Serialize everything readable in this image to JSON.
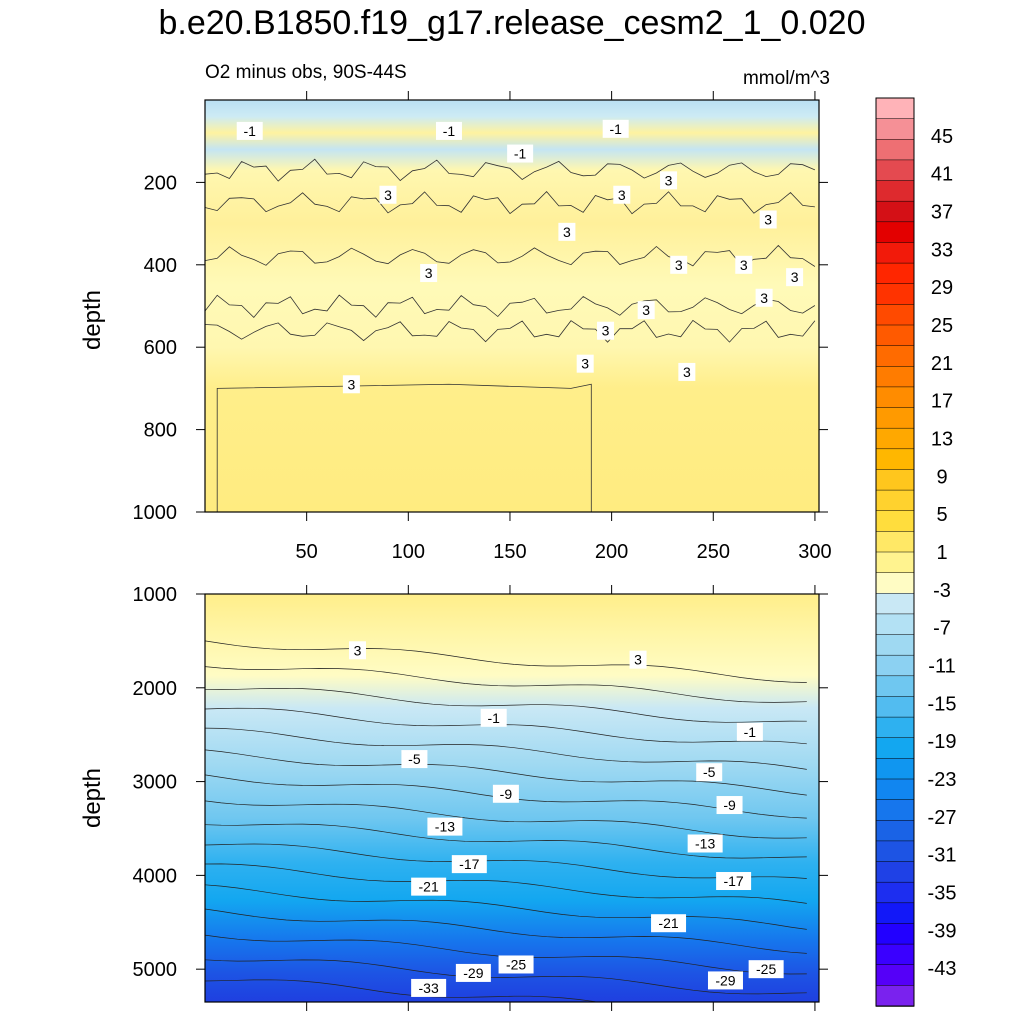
{
  "title": "b.e20.B1850.f19_g17.release_cesm2_1_0.020",
  "subtitle_left": "O2 minus obs, 90S-44S",
  "subtitle_right": "mmol/m^3",
  "chart_data": [
    {
      "type": "heatmap",
      "panel": "upper",
      "xlabel": "",
      "ylabel": "depth",
      "xlim": [
        0,
        302
      ],
      "ylim": [
        1000,
        0
      ],
      "xticks": [
        50,
        100,
        150,
        200,
        250,
        300
      ],
      "yticks": [
        200,
        400,
        600,
        800,
        1000
      ],
      "contour_labels": [
        {
          "value": "-1",
          "x": 22,
          "y": 75
        },
        {
          "value": "-1",
          "x": 120,
          "y": 75
        },
        {
          "value": "-1",
          "x": 202,
          "y": 70
        },
        {
          "value": "-1",
          "x": 155,
          "y": 130
        },
        {
          "value": "3",
          "x": 90,
          "y": 230
        },
        {
          "value": "3",
          "x": 178,
          "y": 320
        },
        {
          "value": "3",
          "x": 205,
          "y": 230
        },
        {
          "value": "3",
          "x": 228,
          "y": 195
        },
        {
          "value": "3",
          "x": 277,
          "y": 290
        },
        {
          "value": "3",
          "x": 110,
          "y": 420
        },
        {
          "value": "3",
          "x": 233,
          "y": 400
        },
        {
          "value": "3",
          "x": 265,
          "y": 400
        },
        {
          "value": "3",
          "x": 290,
          "y": 430
        },
        {
          "value": "3",
          "x": 275,
          "y": 480
        },
        {
          "value": "3",
          "x": 217,
          "y": 510
        },
        {
          "value": "3",
          "x": 197,
          "y": 560
        },
        {
          "value": "3",
          "x": 187,
          "y": 640
        },
        {
          "value": "3",
          "x": 237,
          "y": 660
        },
        {
          "value": "3",
          "x": 72,
          "y": 690
        }
      ]
    },
    {
      "type": "heatmap",
      "panel": "lower",
      "xlabel": "",
      "ylabel": "depth",
      "xlim": [
        0,
        302
      ],
      "ylim": [
        5350,
        1000
      ],
      "xticks": [
        50,
        100,
        150,
        200,
        250,
        300
      ],
      "yticks": [
        1000,
        2000,
        3000,
        4000,
        5000
      ],
      "contour_labels": [
        {
          "value": "3",
          "x": 75,
          "y": 1600
        },
        {
          "value": "3",
          "x": 213,
          "y": 1700
        },
        {
          "value": "-1",
          "x": 142,
          "y": 2320
        },
        {
          "value": "-1",
          "x": 268,
          "y": 2470
        },
        {
          "value": "-5",
          "x": 103,
          "y": 2760
        },
        {
          "value": "-5",
          "x": 248,
          "y": 2900
        },
        {
          "value": "-9",
          "x": 148,
          "y": 3130
        },
        {
          "value": "-9",
          "x": 258,
          "y": 3250
        },
        {
          "value": "-13",
          "x": 118,
          "y": 3480
        },
        {
          "value": "-13",
          "x": 246,
          "y": 3660
        },
        {
          "value": "-17",
          "x": 130,
          "y": 3880
        },
        {
          "value": "-17",
          "x": 260,
          "y": 4060
        },
        {
          "value": "-21",
          "x": 110,
          "y": 4120
        },
        {
          "value": "-21",
          "x": 228,
          "y": 4510
        },
        {
          "value": "-25",
          "x": 153,
          "y": 4950
        },
        {
          "value": "-25",
          "x": 276,
          "y": 5000
        },
        {
          "value": "-29",
          "x": 132,
          "y": 5040
        },
        {
          "value": "-29",
          "x": 256,
          "y": 5120
        },
        {
          "value": "-33",
          "x": 110,
          "y": 5200
        }
      ]
    }
  ],
  "colorbar": {
    "labels": [
      "45",
      "41",
      "37",
      "33",
      "29",
      "25",
      "21",
      "17",
      "13",
      "9",
      "5",
      "1",
      "-3",
      "-7",
      "-11",
      "-15",
      "-19",
      "-23",
      "-27",
      "-31",
      "-35",
      "-39",
      "-43"
    ],
    "colors_top_to_bottom": [
      "#ffb3b8",
      "#f59096",
      "#ee6f73",
      "#e44a50",
      "#de2a2e",
      "#d41016",
      "#e30000",
      "#f21a0a",
      "#ff2600",
      "#ff3300",
      "#ff4a00",
      "#ff5a00",
      "#ff6b00",
      "#ff7c00",
      "#ff8c00",
      "#ff9a00",
      "#ffa800",
      "#ffb700",
      "#ffc61d",
      "#ffd22e",
      "#ffdd3d",
      "#ffe866",
      "#fff38f",
      "#fffcc4",
      "#c9e8f5",
      "#b3e1f4",
      "#9fd9f2",
      "#8cd1f2",
      "#6fc7f0",
      "#52bcf0",
      "#2eb1f0",
      "#13a7f0",
      "#1096f0",
      "#1186f0",
      "#1676ed",
      "#1a63e6",
      "#1d54e4",
      "#1f41e6",
      "#1d2ef0",
      "#1218f8",
      "#2200ff",
      "#3a00ff",
      "#5500f8",
      "#7a22ee"
    ]
  }
}
